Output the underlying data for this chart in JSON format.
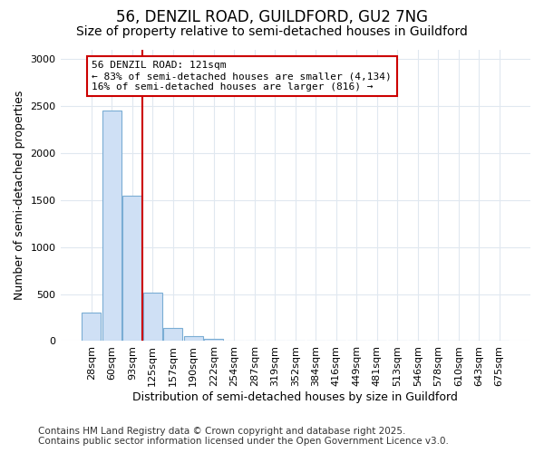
{
  "title_line1": "56, DENZIL ROAD, GUILDFORD, GU2 7NG",
  "title_line2": "Size of property relative to semi-detached houses in Guildford",
  "xlabel": "Distribution of semi-detached houses by size in Guildford",
  "ylabel": "Number of semi-detached properties",
  "categories": [
    "28sqm",
    "60sqm",
    "93sqm",
    "125sqm",
    "157sqm",
    "190sqm",
    "222sqm",
    "254sqm",
    "287sqm",
    "319sqm",
    "352sqm",
    "384sqm",
    "416sqm",
    "449sqm",
    "481sqm",
    "513sqm",
    "546sqm",
    "578sqm",
    "610sqm",
    "643sqm",
    "675sqm"
  ],
  "values": [
    300,
    2450,
    1550,
    520,
    140,
    55,
    20,
    5,
    0,
    0,
    0,
    0,
    0,
    0,
    0,
    0,
    0,
    0,
    0,
    0,
    0
  ],
  "bar_color": "#cfe0f5",
  "bar_edge_color": "#7aadd4",
  "vline_x": 2.5,
  "vline_color": "#cc0000",
  "annotation_text_line1": "56 DENZIL ROAD: 121sqm",
  "annotation_text_line2": "← 83% of semi-detached houses are smaller (4,134)",
  "annotation_text_line3": "16% of semi-detached houses are larger (816) →",
  "annotation_box_facecolor": "#ffffff",
  "annotation_box_edgecolor": "#cc0000",
  "ylim": [
    0,
    3100
  ],
  "yticks": [
    0,
    500,
    1000,
    1500,
    2000,
    2500,
    3000
  ],
  "footnote_line1": "Contains HM Land Registry data © Crown copyright and database right 2025.",
  "footnote_line2": "Contains public sector information licensed under the Open Government Licence v3.0.",
  "bg_color": "#ffffff",
  "plot_bg_color": "#ffffff",
  "grid_color": "#e0e8f0",
  "title_fontsize": 12,
  "subtitle_fontsize": 10,
  "label_fontsize": 9,
  "tick_fontsize": 8,
  "footnote_fontsize": 7.5,
  "annotation_fontsize": 8
}
